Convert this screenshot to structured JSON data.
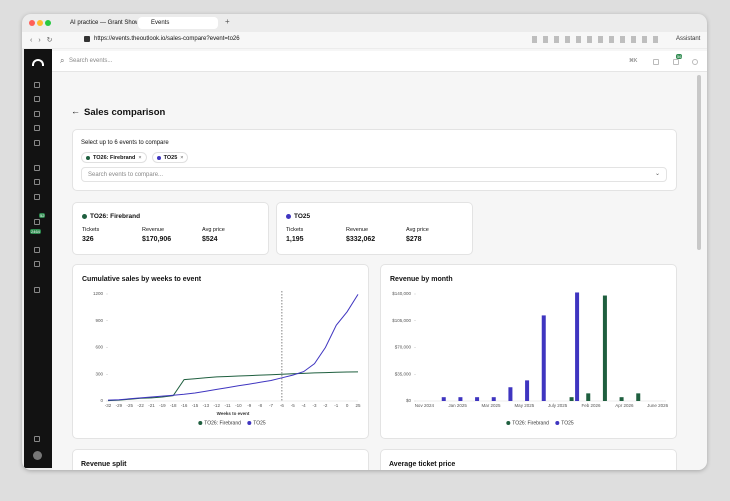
{
  "browser": {
    "tabs": [
      "AI practice — Grant Show",
      "Events"
    ],
    "url": "https://events.theoutlook.io/sales-compare?event=to26",
    "assistant": "Assistant"
  },
  "app": {
    "search_placeholder": "Search events...",
    "shortcut": "⌘K",
    "notifications": "56",
    "sidebar_badges": [
      "52",
      "2464"
    ]
  },
  "page": {
    "title": "Sales comparison",
    "selector_label": "Select up to 6 events to compare",
    "chips": [
      {
        "name": "TO26: Firebrand",
        "color": "#1f5f3f"
      },
      {
        "name": "TO25",
        "color": "#3f35c0"
      }
    ],
    "compare_placeholder": "Search events to compare...",
    "summaries": [
      {
        "name": "TO26: Firebrand",
        "color": "#1f5f3f",
        "stats": [
          {
            "label": "Tickets",
            "value": "326"
          },
          {
            "label": "Revenue",
            "value": "$170,906"
          },
          {
            "label": "Avg price",
            "value": "$524"
          }
        ]
      },
      {
        "name": "TO25",
        "color": "#3f35c0",
        "stats": [
          {
            "label": "Tickets",
            "value": "1,195"
          },
          {
            "label": "Revenue",
            "value": "$332,062"
          },
          {
            "label": "Avg price",
            "value": "$278"
          }
        ]
      }
    ],
    "lower_titles": [
      "Revenue split",
      "Average ticket price"
    ]
  },
  "chart_data": [
    {
      "type": "line",
      "title": "Cumulative sales by weeks to event",
      "x_label": "Weeks to event",
      "categories": [
        -32,
        -29,
        -25,
        -22,
        -21,
        -19,
        -18,
        -16,
        -15,
        -13,
        -12,
        -11,
        -10,
        -9,
        -8,
        -7,
        -6,
        -5,
        -4,
        -3,
        -2,
        -1,
        0,
        25
      ],
      "vline": -6,
      "series": [
        {
          "name": "TO26: Firebrand",
          "color": "#1f5f3f",
          "values": [
            5,
            10,
            20,
            30,
            35,
            45,
            60,
            240,
            250,
            260,
            270,
            275,
            280,
            285,
            290,
            295,
            300,
            305,
            310,
            315,
            318,
            322,
            325,
            326
          ]
        },
        {
          "name": "TO25",
          "color": "#3f35c0",
          "values": [
            10,
            15,
            25,
            35,
            45,
            55,
            65,
            75,
            90,
            110,
            130,
            150,
            170,
            190,
            210,
            230,
            260,
            290,
            330,
            420,
            600,
            850,
            1000,
            1195
          ]
        }
      ],
      "ylim": [
        0,
        1200
      ],
      "yticks": [
        0,
        300,
        600,
        900,
        1200
      ]
    },
    {
      "type": "bar",
      "title": "Revenue by month",
      "categories": [
        "Nov 2024",
        null,
        "Jan 2025",
        null,
        "Mar 2025",
        null,
        "May 2025",
        null,
        "July 2025",
        null,
        "Feb 2026",
        null,
        "Apr 2026",
        null,
        "June 2026"
      ],
      "series": [
        {
          "name": "TO26: Firebrand",
          "color": "#1f5f3f",
          "values": [
            null,
            null,
            null,
            null,
            null,
            null,
            null,
            null,
            null,
            5000,
            10000,
            138000,
            5000,
            10000,
            null
          ]
        },
        {
          "name": "TO25",
          "color": "#3f35c0",
          "values": [
            null,
            5000,
            5000,
            5000,
            5000,
            18000,
            27000,
            112000,
            null,
            142000,
            null,
            null,
            null,
            null,
            null
          ]
        }
      ],
      "ylim": [
        0,
        140000
      ],
      "yticks": [
        {
          "value": 0,
          "label": "$0"
        },
        {
          "value": 35000,
          "label": "$35,000"
        },
        {
          "value": 70000,
          "label": "$70,000"
        },
        {
          "value": 105000,
          "label": "$105,000"
        },
        {
          "value": 140000,
          "label": "$140,000"
        }
      ]
    }
  ]
}
